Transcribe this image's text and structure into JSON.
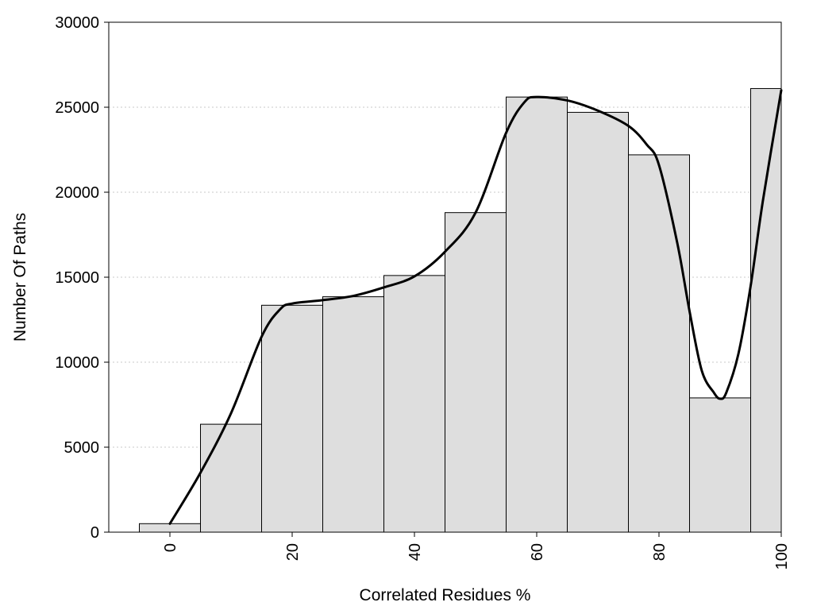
{
  "chart_data": {
    "type": "bar",
    "title": "",
    "xlabel": "Correlated Residues %",
    "ylabel": "Number Of Paths",
    "bins": [
      0,
      10,
      20,
      30,
      40,
      50,
      60,
      70,
      80,
      90,
      100
    ],
    "values": [
      500,
      6350,
      13350,
      13850,
      15100,
      18800,
      25600,
      24700,
      22200,
      7900,
      26100
    ],
    "bin_width": 10,
    "xlim": [
      -10,
      100
    ],
    "ylim": [
      0,
      30000
    ],
    "x_ticks": [
      0,
      20,
      40,
      60,
      80,
      100
    ],
    "x_tick_labels": [
      "0",
      "20",
      "40",
      "60",
      "80",
      "100"
    ],
    "y_ticks": [
      0,
      5000,
      10000,
      15000,
      20000,
      25000,
      30000
    ],
    "y_tick_labels": [
      "0",
      "5000",
      "10000",
      "15000",
      "20000",
      "25000",
      "30000"
    ],
    "grid": "horizontal dotted",
    "legend": "none",
    "bar_color": "#dedede",
    "curve": {
      "type": "smooth line",
      "color": "#000000",
      "points": [
        [
          0,
          500
        ],
        [
          5,
          3500
        ],
        [
          10,
          7000
        ],
        [
          15,
          11500
        ],
        [
          18,
          13100
        ],
        [
          20,
          13450
        ],
        [
          25,
          13650
        ],
        [
          30,
          13900
        ],
        [
          35,
          14400
        ],
        [
          40,
          15050
        ],
        [
          45,
          16500
        ],
        [
          50,
          18800
        ],
        [
          55,
          23500
        ],
        [
          58,
          25300
        ],
        [
          60,
          25600
        ],
        [
          65,
          25400
        ],
        [
          70,
          24800
        ],
        [
          75,
          23900
        ],
        [
          78,
          22800
        ],
        [
          80,
          21600
        ],
        [
          83,
          17000
        ],
        [
          85,
          13000
        ],
        [
          87,
          9500
        ],
        [
          89,
          8200
        ],
        [
          90,
          7850
        ],
        [
          91,
          8200
        ],
        [
          93,
          10500
        ],
        [
          95,
          14500
        ],
        [
          97,
          19500
        ],
        [
          100,
          26000
        ]
      ]
    }
  }
}
